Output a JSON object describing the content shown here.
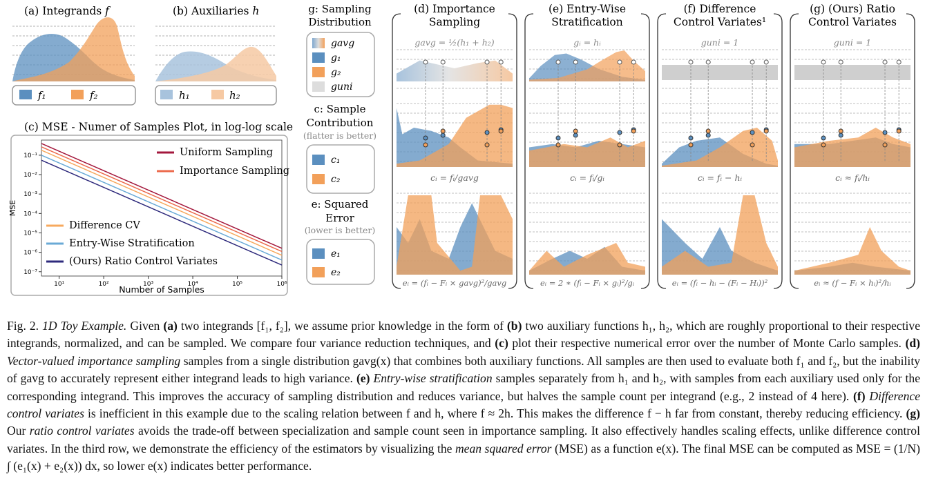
{
  "panels": {
    "a": {
      "title": "(a) Integrands",
      "symbol": "f",
      "legend": [
        "f₁",
        "f₂"
      ]
    },
    "b": {
      "title": "(b) Auxiliaries",
      "symbol": "h",
      "legend": [
        "h₁",
        "h₂"
      ]
    },
    "c": {
      "title": "(c) MSE - Numer of Samples Plot, in log-log scale"
    },
    "d": {
      "title_l1": "(d) Importance",
      "title_l2": "Sampling",
      "formula": "gavg = ½(h₁ + h₂)",
      "c_formula": "cᵢ = fᵢ/gavg",
      "e_formula": "eᵢ = (fᵢ − Fᵢ × gavg)²/gavg"
    },
    "e": {
      "title_l1": "(e) Entry-Wise",
      "title_l2": "Stratification",
      "formula": "gᵢ = hᵢ",
      "c_formula": "cᵢ = fᵢ/gᵢ",
      "e_formula": "eᵢ = 2 ∗ (fᵢ − Fᵢ × gᵢ)²/gᵢ"
    },
    "f": {
      "title_l1": "(f) Difference",
      "title_l2": "Control Variates¹",
      "formula": "guni = 1",
      "c_formula": "cᵢ = fᵢ − hᵢ",
      "e_formula": "eᵢ = (fᵢ − hᵢ − (Fᵢ − Hᵢ))²"
    },
    "g": {
      "title_l1": "(g) (Ours) Ratio",
      "title_l2": "Control Variates",
      "formula": "guni = 1",
      "c_formula": "cᵢ ≈ fᵢ/hᵢ",
      "e_formula": "eᵢ ≈ (f − Fᵢ × hᵢ)²/hᵢ"
    }
  },
  "legend_col": {
    "g_title_l1": "g: Sampling",
    "g_title_l2": "Distribution",
    "g_items": [
      "gavg",
      "g₁",
      "g₂",
      "guni"
    ],
    "c_title_l1": "c: Sample",
    "c_title_l2": "Contribution",
    "c_note": "(flatter is better)",
    "c_items": [
      "c₁",
      "c₂"
    ],
    "e_title_l1": "e: Squared",
    "e_title_l2": "Error",
    "e_note": "(lower is better)",
    "e_items": [
      "e₁",
      "e₂"
    ]
  },
  "colors": {
    "blue": "#5b8fbf",
    "orange": "#f2a05a",
    "gray": "#cfcfcf",
    "uniform": "#a3173c",
    "importance": "#ec6a4c",
    "difference": "#f7a95e",
    "entrywise": "#6aaad6",
    "ratio": "#2e2a7c"
  },
  "chart_data": {
    "type": "line",
    "title": "(c) MSE - Numer of Samples Plot, in log-log scale",
    "xlabel": "Number of Samples",
    "ylabel": "MSE",
    "x_scale": "log",
    "y_scale": "log",
    "xlim": [
      4,
      1000000
    ],
    "ylim": [
      6e-08,
      0.6
    ],
    "x_ticks": [
      "10¹",
      "10²",
      "10³",
      "10⁴",
      "10⁵",
      "10⁶"
    ],
    "y_ticks": [
      "10⁻¹",
      "10⁻²",
      "10⁻³",
      "10⁻⁴",
      "10⁻⁵",
      "10⁻⁶",
      "10⁻⁷"
    ],
    "series": [
      {
        "name": "Uniform Sampling",
        "x": [
          4,
          1000000
        ],
        "y": [
          0.4,
          1.6e-06
        ]
      },
      {
        "name": "Importance Sampling",
        "x": [
          4,
          1000000
        ],
        "y": [
          0.27,
          1.1e-06
        ]
      },
      {
        "name": "Difference CV",
        "x": [
          4,
          1000000
        ],
        "y": [
          0.18,
          7e-07
        ]
      },
      {
        "name": "Entry-Wise Stratification",
        "x": [
          4,
          1000000
        ],
        "y": [
          0.1,
          4e-07
        ]
      },
      {
        "name": "(Ours) Ratio Control Variates",
        "x": [
          4,
          1000000
        ],
        "y": [
          0.055,
          2.2e-07
        ]
      }
    ]
  },
  "caption": {
    "lead": "Fig. 2.",
    "title": "1D Toy Example.",
    "p1": "Given",
    "a": "(a)",
    "a_txt": "two integrands [f₁, f₂], we assume prior knowledge in the form of",
    "b": "(b)",
    "b_txt": "two auxiliary functions h₁, h₂, which are roughly proportional to their respective integrands, normalized, and can be sampled. We compare four variance reduction techniques, and",
    "c": "(c)",
    "c_txt": "plot their respective numerical error over the number of Monte Carlo samples.",
    "d": "(d)",
    "d_it": "Vector-valued importance sampling",
    "d_txt": "samples from a single distribution gavg(x) that combines both auxiliary functions. All samples are then used to evaluate both f₁ and f₂, but the inability of gavg to accurately represent either integrand leads to high variance.",
    "e": "(e)",
    "e_it": "Entry-wise stratification",
    "e_txt": "samples separately from h₁ and h₂, with samples from each auxiliary used only for the corresponding integrand. This improves the accuracy of sampling distribution and reduces variance, but halves the sample count per integrand (e.g., 2 instead of 4 here).",
    "f": "(f)",
    "f_it": "Difference control variates",
    "f_txt": "is inefficient in this example due to the scaling relation between f and h, where f ≈ 2h. This makes the difference f − h far from constant, thereby reducing efficiency.",
    "g": "(g)",
    "g_pre": "Our",
    "g_it": "ratio control variates",
    "g_txt": "avoids the trade-off between specialization and sample count seen in importance sampling. It also effectively handles scaling effects, unlike difference control variates. In the third row, we demonstrate the efficiency of the estimators by visualizing the",
    "mse_it": "mean squared error",
    "mse_txt": "(MSE) as a function e(x). The final MSE can be computed as MSE = (1/N) ∫ (e₁(x) + e₂(x)) dx, so lower e(x) indicates better performance."
  }
}
